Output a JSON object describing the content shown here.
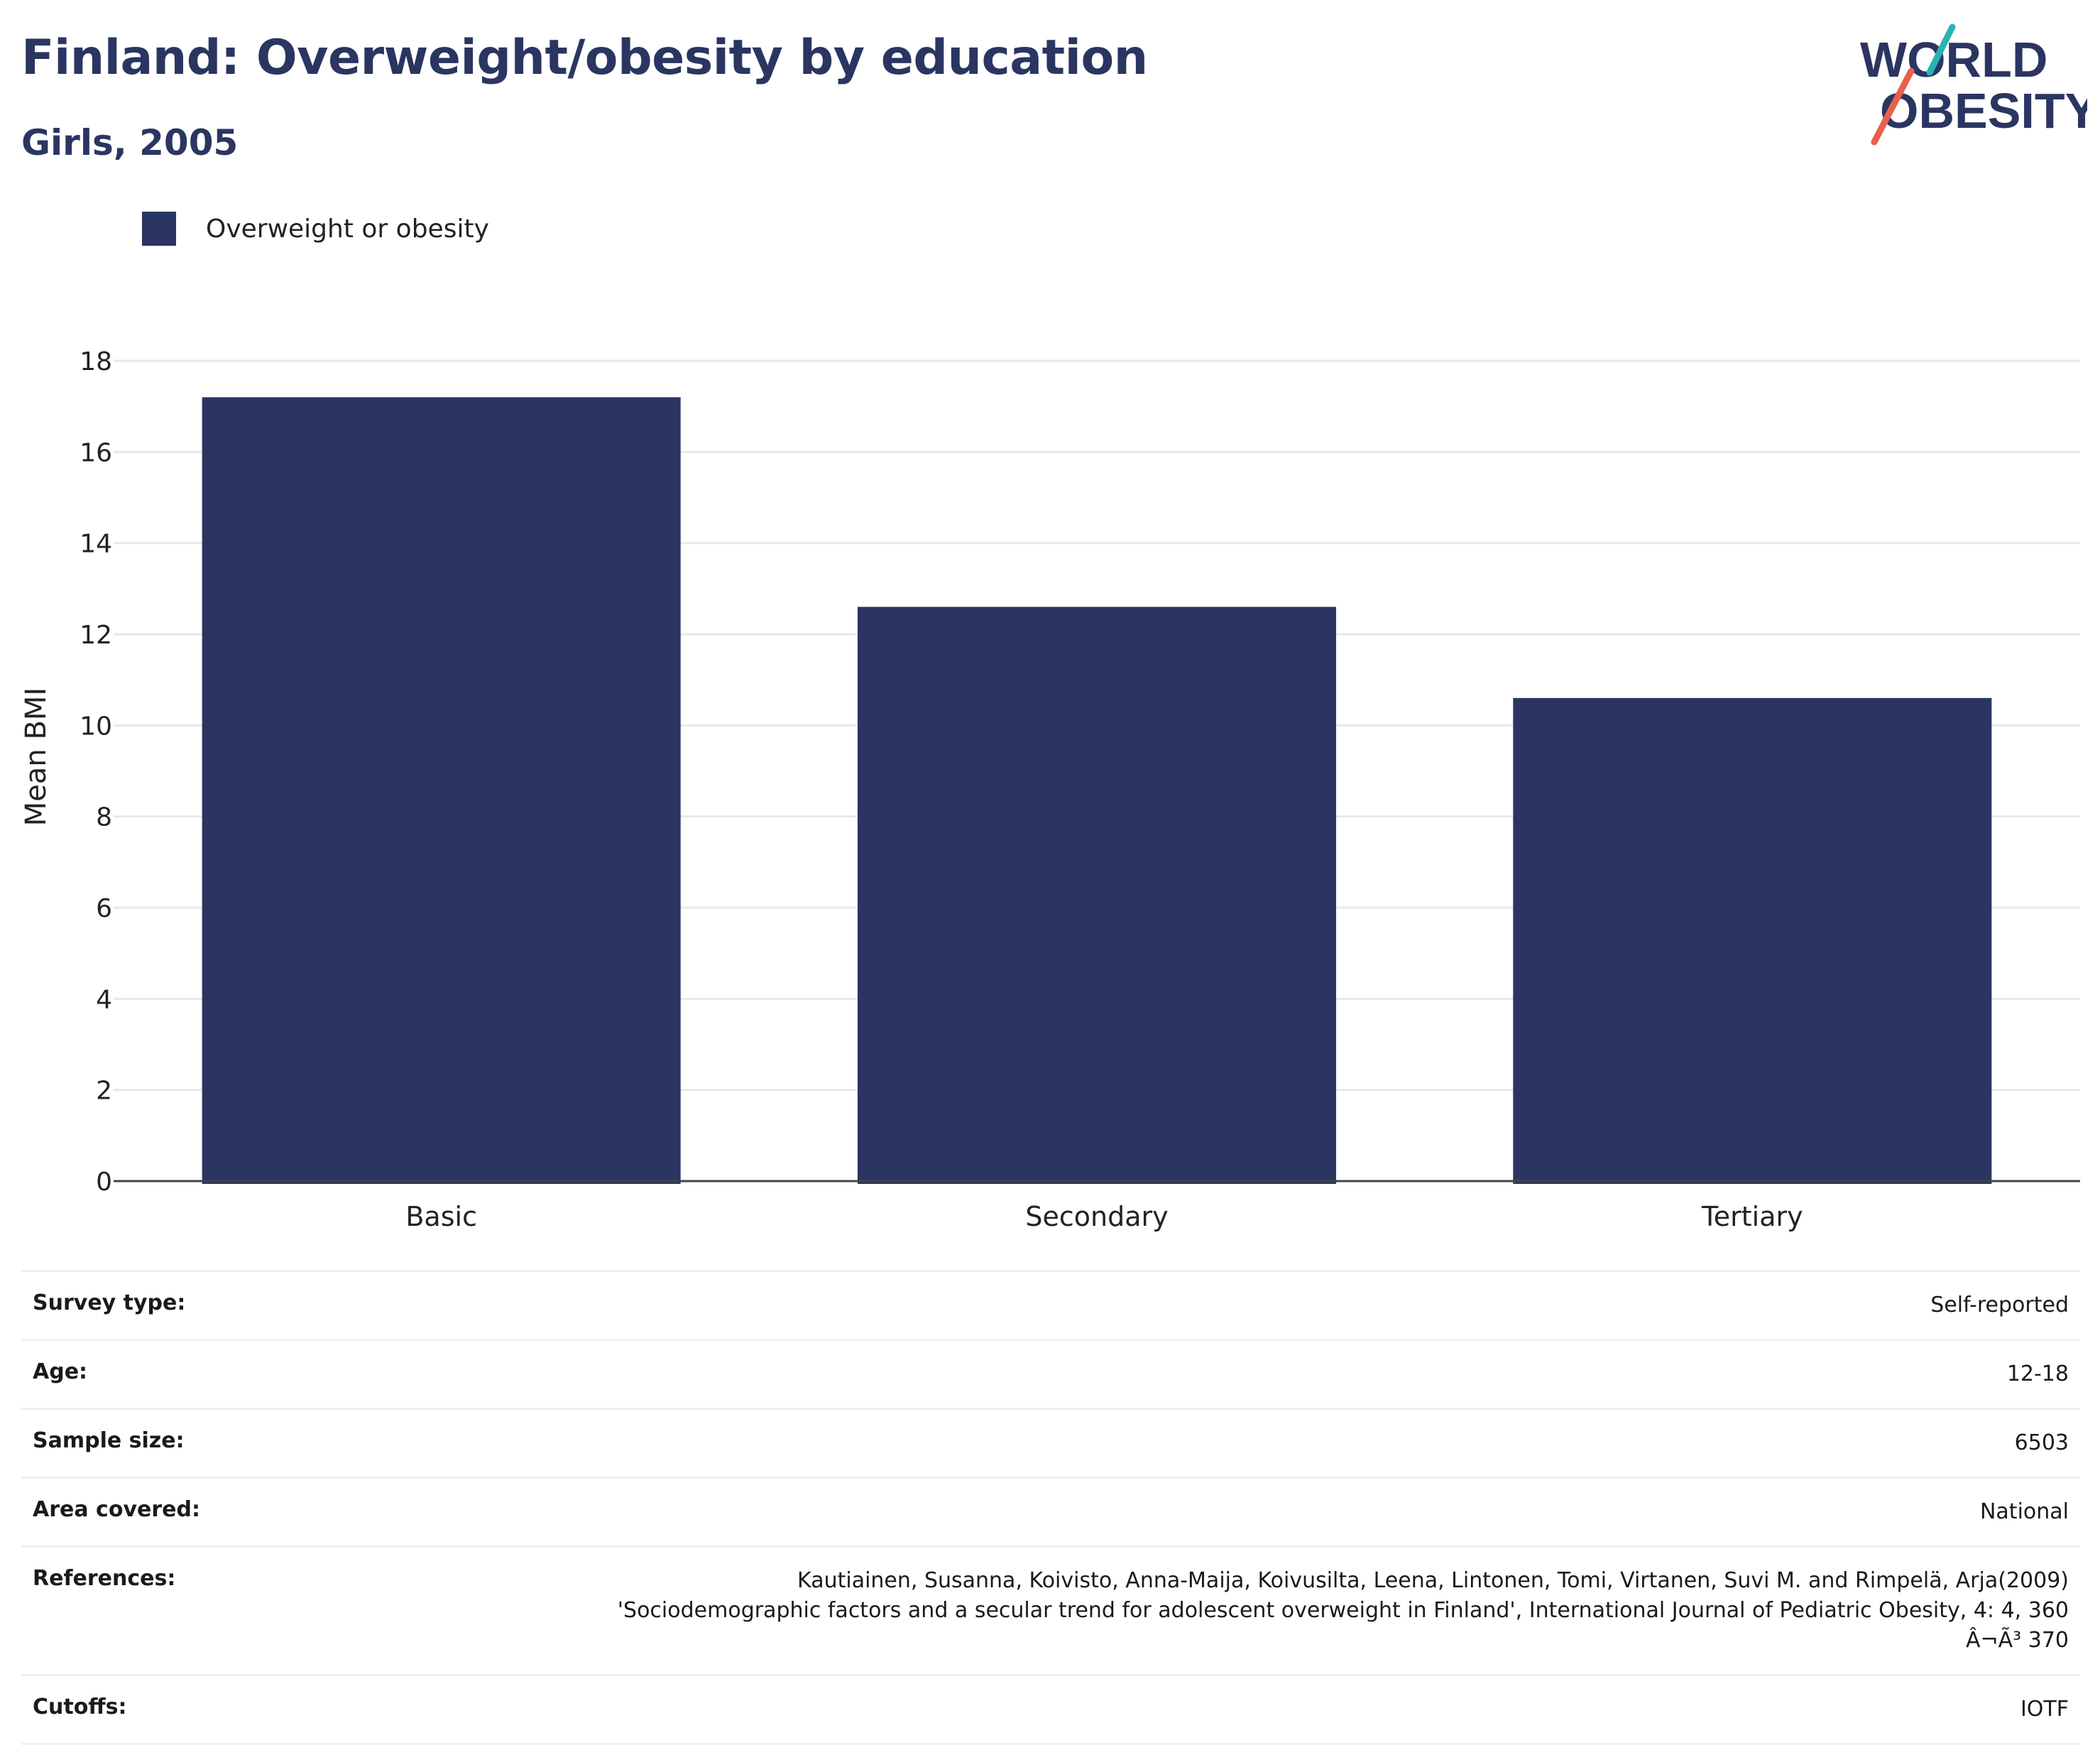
{
  "title": "Finland: Overweight/obesity by education",
  "subtitle": "Girls, 2005",
  "logo": {
    "line1": "WORLD",
    "line2": "OBESITY",
    "accent_teal": "#2bb3b1",
    "accent_red": "#e8604c",
    "color": "#2a3561"
  },
  "legend": {
    "label": "Overweight or obesity",
    "color": "#2a3561"
  },
  "chart_data": {
    "type": "bar",
    "categories": [
      "Basic",
      "Secondary",
      "Tertiary"
    ],
    "series": [
      {
        "name": "Overweight or obesity",
        "values": [
          17.2,
          12.6,
          10.6
        ],
        "color": "#2a3561"
      }
    ],
    "ylabel": "Mean BMI",
    "xlabel": "",
    "ylim": [
      0,
      18
    ],
    "yticks": [
      0,
      2,
      4,
      6,
      8,
      10,
      12,
      14,
      16,
      18
    ],
    "grid": true,
    "legend_position": "top-left"
  },
  "info": [
    {
      "key": "Survey type:",
      "value": "Self-reported"
    },
    {
      "key": "Age:",
      "value": "12-18"
    },
    {
      "key": "Sample size:",
      "value": "6503"
    },
    {
      "key": "Area covered:",
      "value": "National"
    },
    {
      "key": "References:",
      "value": "Kautiainen, Susanna, Koivisto, Anna-Maija, Koivusilta, Leena, Lintonen, Tomi, Virtanen, Suvi M. and Rimpelä, Arja(2009)\n'Sociodemographic factors and a secular trend for adolescent overweight in Finland', International Journal of Pediatric Obesity, 4: 4, 360\nÂ¬Ã³ 370"
    },
    {
      "key": "Cutoffs:",
      "value": "IOTF"
    }
  ]
}
